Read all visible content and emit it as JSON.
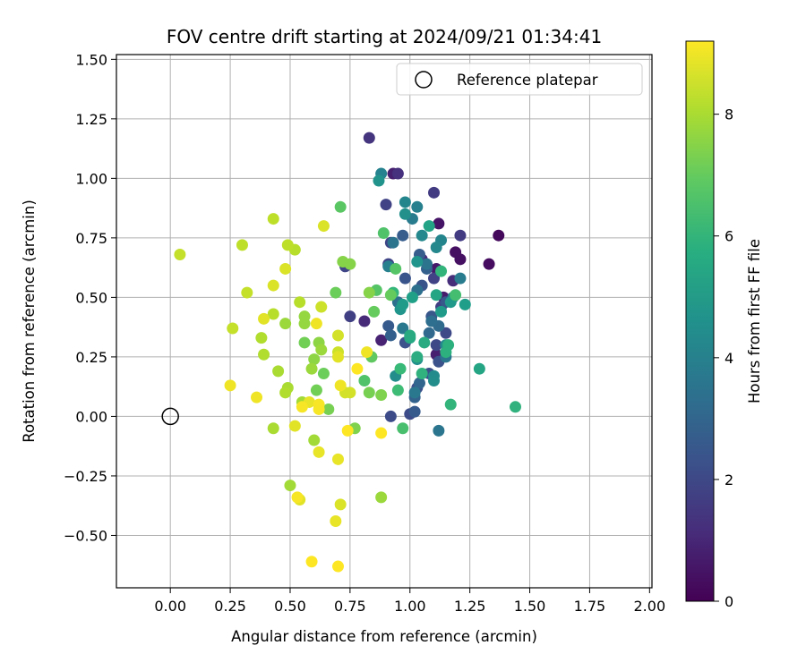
{
  "chart_data": {
    "type": "scatter",
    "title": "FOV centre drift starting at 2024/09/21 01:34:41",
    "xlabel": "Angular distance from reference (arcmin)",
    "ylabel": "Rotation from reference (arcmin)",
    "xlim": [
      -0.225,
      2.01
    ],
    "ylim": [
      -0.72,
      1.52
    ],
    "xticks": [
      "0.00",
      "0.25",
      "0.50",
      "0.75",
      "1.00",
      "1.25",
      "1.50",
      "1.75",
      "2.00"
    ],
    "yticks": [
      "−0.50",
      "−0.25",
      "0.00",
      "0.25",
      "0.50",
      "0.75",
      "1.00",
      "1.25",
      "1.50"
    ],
    "grid": true,
    "legend": {
      "placement": "top-right",
      "entries": [
        "Reference platepar"
      ]
    },
    "reference_point": {
      "x": 0.0,
      "y": 0.0,
      "marker": "open-circle"
    },
    "colorbar": {
      "label": "Hours from first FF file",
      "colormap": "viridis",
      "range": [
        0,
        9.2
      ],
      "ticks": [
        "0",
        "2",
        "4",
        "6",
        "8"
      ]
    },
    "points": [
      {
        "x": 1.37,
        "y": 0.76,
        "c": 0.2
      },
      {
        "x": 1.33,
        "y": 0.64,
        "c": 0.3
      },
      {
        "x": 1.19,
        "y": 0.69,
        "c": 0.4
      },
      {
        "x": 1.21,
        "y": 0.66,
        "c": 0.4
      },
      {
        "x": 1.12,
        "y": 0.81,
        "c": 0.5
      },
      {
        "x": 1.11,
        "y": 0.62,
        "c": 0.6
      },
      {
        "x": 1.14,
        "y": 0.5,
        "c": 0.7
      },
      {
        "x": 1.11,
        "y": 0.26,
        "c": 0.8
      },
      {
        "x": 0.93,
        "y": 1.02,
        "c": 0.8
      },
      {
        "x": 0.88,
        "y": 0.32,
        "c": 0.9
      },
      {
        "x": 1.05,
        "y": 0.66,
        "c": 1.0
      },
      {
        "x": 0.81,
        "y": 0.4,
        "c": 1.1
      },
      {
        "x": 1.18,
        "y": 0.57,
        "c": 1.2
      },
      {
        "x": 0.95,
        "y": 1.02,
        "c": 1.3
      },
      {
        "x": 0.83,
        "y": 1.17,
        "c": 1.4
      },
      {
        "x": 1.1,
        "y": 0.94,
        "c": 1.6
      },
      {
        "x": 1.21,
        "y": 0.76,
        "c": 1.6
      },
      {
        "x": 1.13,
        "y": 0.46,
        "c": 1.7
      },
      {
        "x": 0.75,
        "y": 0.42,
        "c": 1.7
      },
      {
        "x": 1.1,
        "y": 0.58,
        "c": 1.8
      },
      {
        "x": 0.9,
        "y": 0.89,
        "c": 1.8
      },
      {
        "x": 0.92,
        "y": 0.73,
        "c": 1.9
      },
      {
        "x": 0.91,
        "y": 0.64,
        "c": 1.9
      },
      {
        "x": 0.73,
        "y": 0.63,
        "c": 1.9
      },
      {
        "x": 1.15,
        "y": 0.35,
        "c": 2.0
      },
      {
        "x": 1.11,
        "y": 0.3,
        "c": 2.0
      },
      {
        "x": 1.0,
        "y": 0.01,
        "c": 2.1
      },
      {
        "x": 0.92,
        "y": 0.0,
        "c": 2.1
      },
      {
        "x": 1.03,
        "y": 0.12,
        "c": 2.2
      },
      {
        "x": 1.08,
        "y": 0.18,
        "c": 2.2
      },
      {
        "x": 1.12,
        "y": 0.23,
        "c": 2.3
      },
      {
        "x": 0.98,
        "y": 0.31,
        "c": 2.3
      },
      {
        "x": 0.98,
        "y": 0.58,
        "c": 2.4
      },
      {
        "x": 1.05,
        "y": 0.55,
        "c": 2.4
      },
      {
        "x": 1.09,
        "y": 0.42,
        "c": 2.5
      },
      {
        "x": 1.15,
        "y": 0.48,
        "c": 2.5
      },
      {
        "x": 0.91,
        "y": 0.38,
        "c": 2.6
      },
      {
        "x": 1.02,
        "y": 0.02,
        "c": 2.6
      },
      {
        "x": 1.04,
        "y": 0.68,
        "c": 2.7
      },
      {
        "x": 0.97,
        "y": 0.76,
        "c": 2.7
      },
      {
        "x": 1.07,
        "y": 0.62,
        "c": 2.8
      },
      {
        "x": 0.92,
        "y": 0.34,
        "c": 2.8
      },
      {
        "x": 1.02,
        "y": 0.08,
        "c": 2.9
      },
      {
        "x": 1.04,
        "y": 0.14,
        "c": 3.0
      },
      {
        "x": 1.08,
        "y": 0.35,
        "c": 3.1
      },
      {
        "x": 1.12,
        "y": 0.38,
        "c": 3.2
      },
      {
        "x": 1.09,
        "y": 0.4,
        "c": 3.3
      },
      {
        "x": 0.95,
        "y": 0.48,
        "c": 3.4
      },
      {
        "x": 1.03,
        "y": 0.53,
        "c": 3.4
      },
      {
        "x": 1.07,
        "y": 0.64,
        "c": 3.5
      },
      {
        "x": 0.93,
        "y": 0.73,
        "c": 3.5
      },
      {
        "x": 1.12,
        "y": -0.06,
        "c": 3.6
      },
      {
        "x": 1.15,
        "y": 0.25,
        "c": 3.6
      },
      {
        "x": 0.97,
        "y": 0.37,
        "c": 3.7
      },
      {
        "x": 1.02,
        "y": 0.1,
        "c": 3.7
      },
      {
        "x": 1.01,
        "y": 0.83,
        "c": 3.8
      },
      {
        "x": 1.21,
        "y": 0.58,
        "c": 3.8
      },
      {
        "x": 1.18,
        "y": 0.5,
        "c": 3.9
      },
      {
        "x": 0.91,
        "y": 0.63,
        "c": 4.0
      },
      {
        "x": 1.03,
        "y": 0.88,
        "c": 4.0
      },
      {
        "x": 0.88,
        "y": 1.02,
        "c": 4.1
      },
      {
        "x": 0.98,
        "y": 0.9,
        "c": 4.2
      },
      {
        "x": 1.13,
        "y": 0.74,
        "c": 4.2
      },
      {
        "x": 1.11,
        "y": 0.71,
        "c": 4.3
      },
      {
        "x": 1.05,
        "y": 0.76,
        "c": 4.3
      },
      {
        "x": 1.1,
        "y": 0.17,
        "c": 4.4
      },
      {
        "x": 1.15,
        "y": 0.3,
        "c": 4.4
      },
      {
        "x": 1.1,
        "y": 0.15,
        "c": 4.5
      },
      {
        "x": 0.94,
        "y": 0.17,
        "c": 4.5
      },
      {
        "x": 1.03,
        "y": 0.24,
        "c": 4.6
      },
      {
        "x": 0.98,
        "y": 0.85,
        "c": 4.6
      },
      {
        "x": 0.87,
        "y": 0.99,
        "c": 4.7
      },
      {
        "x": 1.03,
        "y": 0.65,
        "c": 4.8
      },
      {
        "x": 0.96,
        "y": 0.45,
        "c": 4.8
      },
      {
        "x": 1.17,
        "y": 0.48,
        "c": 4.9
      },
      {
        "x": 1.13,
        "y": 0.44,
        "c": 5.0
      },
      {
        "x": 0.97,
        "y": 0.47,
        "c": 5.0
      },
      {
        "x": 1.23,
        "y": 0.47,
        "c": 5.1
      },
      {
        "x": 1.01,
        "y": 0.5,
        "c": 5.2
      },
      {
        "x": 1.08,
        "y": 0.8,
        "c": 5.3
      },
      {
        "x": 1.11,
        "y": 0.51,
        "c": 5.4
      },
      {
        "x": 1.29,
        "y": 0.2,
        "c": 5.4
      },
      {
        "x": 1.0,
        "y": 0.33,
        "c": 5.5
      },
      {
        "x": 1.06,
        "y": 0.31,
        "c": 5.6
      },
      {
        "x": 1.0,
        "y": 0.34,
        "c": 5.6
      },
      {
        "x": 1.03,
        "y": 0.25,
        "c": 5.7
      },
      {
        "x": 1.16,
        "y": 0.3,
        "c": 5.8
      },
      {
        "x": 1.15,
        "y": 0.27,
        "c": 5.8
      },
      {
        "x": 1.05,
        "y": 0.18,
        "c": 5.9
      },
      {
        "x": 1.44,
        "y": 0.04,
        "c": 5.9
      },
      {
        "x": 1.17,
        "y": 0.05,
        "c": 6.0
      },
      {
        "x": 1.13,
        "y": 0.61,
        "c": 6.0
      },
      {
        "x": 0.93,
        "y": 0.52,
        "c": 6.1
      },
      {
        "x": 0.96,
        "y": 0.2,
        "c": 6.2
      },
      {
        "x": 0.95,
        "y": 0.11,
        "c": 6.3
      },
      {
        "x": 1.19,
        "y": 0.51,
        "c": 6.4
      },
      {
        "x": 0.97,
        "y": -0.05,
        "c": 6.5
      },
      {
        "x": 0.81,
        "y": 0.15,
        "c": 6.6
      },
      {
        "x": 0.89,
        "y": 0.77,
        "c": 6.6
      },
      {
        "x": 0.94,
        "y": 0.62,
        "c": 6.7
      },
      {
        "x": 0.86,
        "y": 0.53,
        "c": 6.7
      },
      {
        "x": 0.71,
        "y": 0.88,
        "c": 6.8
      },
      {
        "x": 0.84,
        "y": 0.25,
        "c": 6.9
      },
      {
        "x": 0.85,
        "y": 0.44,
        "c": 7.0
      },
      {
        "x": 0.92,
        "y": 0.51,
        "c": 7.0
      },
      {
        "x": 0.64,
        "y": 0.18,
        "c": 7.1
      },
      {
        "x": 0.69,
        "y": 0.52,
        "c": 7.1
      },
      {
        "x": 0.56,
        "y": 0.31,
        "c": 7.2
      },
      {
        "x": 0.61,
        "y": 0.11,
        "c": 7.2
      },
      {
        "x": 0.66,
        "y": 0.03,
        "c": 7.3
      },
      {
        "x": 0.83,
        "y": 0.1,
        "c": 7.3
      },
      {
        "x": 0.88,
        "y": 0.09,
        "c": 7.4
      },
      {
        "x": 0.77,
        "y": -0.05,
        "c": 7.4
      },
      {
        "x": 0.72,
        "y": 0.65,
        "c": 7.5
      },
      {
        "x": 0.75,
        "y": 0.64,
        "c": 7.5
      },
      {
        "x": 0.83,
        "y": 0.52,
        "c": 7.5
      },
      {
        "x": 0.62,
        "y": 0.31,
        "c": 7.6
      },
      {
        "x": 0.6,
        "y": 0.24,
        "c": 7.6
      },
      {
        "x": 0.56,
        "y": 0.39,
        "c": 7.7
      },
      {
        "x": 0.56,
        "y": 0.42,
        "c": 7.7
      },
      {
        "x": 0.48,
        "y": 0.39,
        "c": 7.8
      },
      {
        "x": 0.63,
        "y": 0.28,
        "c": 7.8
      },
      {
        "x": 0.59,
        "y": 0.2,
        "c": 7.8
      },
      {
        "x": 0.55,
        "y": 0.06,
        "c": 7.9
      },
      {
        "x": 0.5,
        "y": -0.29,
        "c": 7.9
      },
      {
        "x": 0.6,
        "y": -0.1,
        "c": 7.9
      },
      {
        "x": 0.43,
        "y": -0.05,
        "c": 8.0
      },
      {
        "x": 0.45,
        "y": 0.19,
        "c": 8.0
      },
      {
        "x": 0.49,
        "y": 0.12,
        "c": 8.0
      },
      {
        "x": 0.48,
        "y": 0.1,
        "c": 8.1
      },
      {
        "x": 0.39,
        "y": 0.26,
        "c": 8.1
      },
      {
        "x": 0.38,
        "y": 0.33,
        "c": 8.1
      },
      {
        "x": 0.43,
        "y": 0.43,
        "c": 8.2
      },
      {
        "x": 0.54,
        "y": 0.48,
        "c": 8.2
      },
      {
        "x": 0.52,
        "y": 0.7,
        "c": 8.2
      },
      {
        "x": 0.49,
        "y": 0.72,
        "c": 8.3
      },
      {
        "x": 0.43,
        "y": 0.83,
        "c": 8.3
      },
      {
        "x": 0.3,
        "y": 0.72,
        "c": 8.3
      },
      {
        "x": 0.32,
        "y": 0.52,
        "c": 8.4
      },
      {
        "x": 0.26,
        "y": 0.37,
        "c": 8.4
      },
      {
        "x": 0.04,
        "y": 0.68,
        "c": 8.4
      },
      {
        "x": 0.63,
        "y": 0.46,
        "c": 8.5
      },
      {
        "x": 0.7,
        "y": 0.27,
        "c": 8.5
      },
      {
        "x": 0.7,
        "y": 0.34,
        "c": 8.6
      },
      {
        "x": 0.75,
        "y": 0.1,
        "c": 8.6
      },
      {
        "x": 0.73,
        "y": 0.1,
        "c": 8.6
      },
      {
        "x": 0.64,
        "y": 0.8,
        "c": 8.7
      },
      {
        "x": 0.48,
        "y": 0.62,
        "c": 8.7
      },
      {
        "x": 0.43,
        "y": 0.55,
        "c": 8.7
      },
      {
        "x": 0.39,
        "y": 0.41,
        "c": 8.8
      },
      {
        "x": 0.7,
        "y": 0.25,
        "c": 8.8
      },
      {
        "x": 0.54,
        "y": -0.35,
        "c": 8.8
      },
      {
        "x": 0.7,
        "y": -0.18,
        "c": 8.9
      },
      {
        "x": 0.69,
        "y": -0.44,
        "c": 8.9
      },
      {
        "x": 0.62,
        "y": -0.15,
        "c": 8.9
      },
      {
        "x": 0.36,
        "y": 0.08,
        "c": 9.0
      },
      {
        "x": 0.25,
        "y": 0.13,
        "c": 9.0
      },
      {
        "x": 0.88,
        "y": -0.34,
        "c": 7.8
      },
      {
        "x": 0.71,
        "y": -0.37,
        "c": 8.7
      },
      {
        "x": 0.52,
        "y": -0.04,
        "c": 8.8
      },
      {
        "x": 0.58,
        "y": 0.06,
        "c": 8.9
      },
      {
        "x": 0.61,
        "y": 0.39,
        "c": 9.0
      },
      {
        "x": 0.82,
        "y": 0.27,
        "c": 9.0
      },
      {
        "x": 0.71,
        "y": 0.13,
        "c": 9.0
      },
      {
        "x": 0.62,
        "y": 0.05,
        "c": 9.1
      },
      {
        "x": 0.62,
        "y": 0.03,
        "c": 9.1
      },
      {
        "x": 0.55,
        "y": 0.04,
        "c": 9.1
      },
      {
        "x": 0.53,
        "y": -0.34,
        "c": 9.1
      },
      {
        "x": 0.74,
        "y": -0.06,
        "c": 9.2
      },
      {
        "x": 0.88,
        "y": -0.07,
        "c": 9.2
      },
      {
        "x": 0.78,
        "y": 0.2,
        "c": 9.2
      },
      {
        "x": 0.59,
        "y": -0.61,
        "c": 9.2
      },
      {
        "x": 0.7,
        "y": -0.63,
        "c": 9.2
      }
    ]
  }
}
